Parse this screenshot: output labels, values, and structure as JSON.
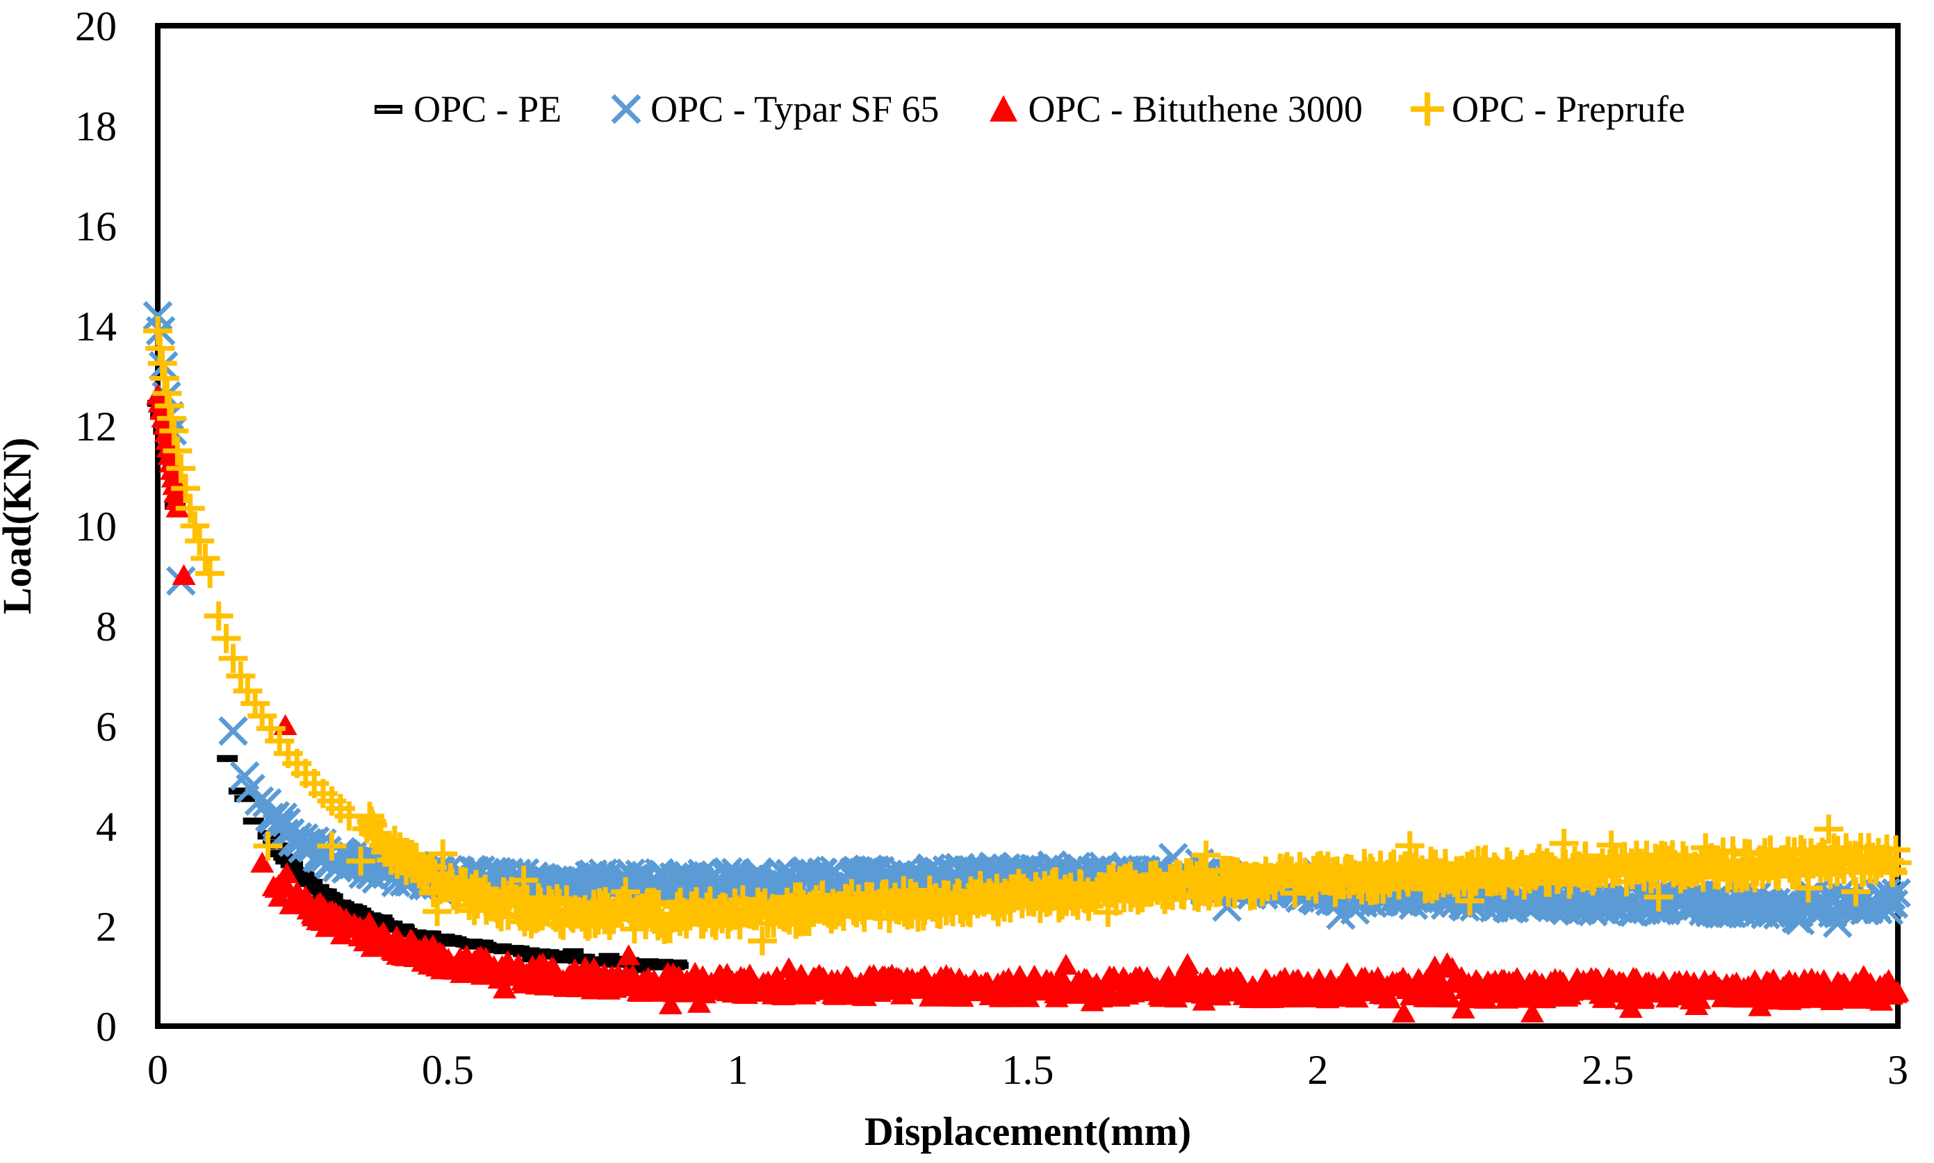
{
  "chart_data": {
    "type": "scatter",
    "title": "",
    "xlabel": "Displacement(mm)",
    "ylabel": "Load(KN)",
    "xlim": [
      0,
      3
    ],
    "ylim": [
      0,
      20
    ],
    "x_ticks": [
      0,
      0.5,
      1,
      1.5,
      2,
      2.5,
      3
    ],
    "x_tick_labels": [
      "0",
      "0.5",
      "1",
      "1.5",
      "2",
      "2.5",
      "3"
    ],
    "y_ticks": [
      0,
      2,
      4,
      6,
      8,
      10,
      12,
      14,
      16,
      18,
      20
    ],
    "y_tick_labels": [
      "0",
      "2",
      "4",
      "6",
      "8",
      "10",
      "12",
      "14",
      "16",
      "18",
      "20"
    ],
    "grid": false,
    "legend_position": "top-center",
    "plot_border": true,
    "background_color": "#ffffff",
    "series": [
      {
        "name": "OPC - PE",
        "marker": "dash",
        "color": "#000000",
        "sparse_points": [
          [
            0,
            12.45
          ],
          [
            0.005,
            12.2
          ],
          [
            0.01,
            11.9
          ],
          [
            0.015,
            11.6
          ],
          [
            0.02,
            11.3
          ],
          [
            0.03,
            10.4
          ],
          [
            0.12,
            5.35
          ],
          [
            0.14,
            4.7
          ],
          [
            0.15,
            4.55
          ],
          [
            0.165,
            4.1
          ],
          [
            0.19,
            3.8
          ]
        ],
        "band_points": [
          [
            0.19,
            3.8
          ],
          [
            0.21,
            3.5
          ],
          [
            0.24,
            3.1
          ],
          [
            0.27,
            2.8
          ],
          [
            0.3,
            2.55
          ],
          [
            0.33,
            2.35
          ],
          [
            0.36,
            2.2
          ],
          [
            0.4,
            2.0
          ],
          [
            0.44,
            1.88
          ],
          [
            0.48,
            1.77
          ],
          [
            0.52,
            1.68
          ],
          [
            0.56,
            1.6
          ],
          [
            0.6,
            1.52
          ],
          [
            0.65,
            1.45
          ],
          [
            0.7,
            1.38
          ],
          [
            0.75,
            1.32
          ],
          [
            0.8,
            1.27
          ],
          [
            0.85,
            1.23
          ],
          [
            0.9,
            1.2
          ]
        ],
        "band_halfwidth": 0.06,
        "band_step": 0.004
      },
      {
        "name": "OPC - Typar SF 65",
        "marker": "x",
        "color": "#5B9BD5",
        "sparse_points": [
          [
            0,
            14.2
          ],
          [
            0.005,
            13.9
          ],
          [
            0.01,
            13.2
          ],
          [
            0.015,
            12.6
          ],
          [
            0.02,
            12.2
          ],
          [
            0.025,
            11.9
          ],
          [
            0.04,
            8.9
          ],
          [
            0.13,
            5.9
          ],
          [
            0.15,
            5.0
          ],
          [
            0.16,
            4.75
          ],
          [
            0.175,
            4.5
          ]
        ],
        "band_points": [
          [
            0.19,
            4.3
          ],
          [
            0.2,
            4.15
          ],
          [
            0.22,
            3.95
          ],
          [
            0.24,
            3.8
          ],
          [
            0.26,
            3.65
          ],
          [
            0.28,
            3.5
          ],
          [
            0.3,
            3.4
          ],
          [
            0.33,
            3.28
          ],
          [
            0.36,
            3.18
          ],
          [
            0.4,
            3.08
          ],
          [
            0.45,
            3.0
          ],
          [
            0.5,
            2.95
          ],
          [
            0.6,
            2.9
          ],
          [
            0.7,
            2.87
          ],
          [
            0.8,
            2.86
          ],
          [
            0.9,
            2.87
          ],
          [
            1.0,
            2.9
          ],
          [
            1.2,
            2.94
          ],
          [
            1.4,
            3.0
          ],
          [
            1.55,
            3.03
          ],
          [
            1.65,
            3.0
          ],
          [
            1.8,
            2.88
          ],
          [
            2.0,
            2.7
          ],
          [
            2.2,
            2.58
          ],
          [
            2.4,
            2.5
          ],
          [
            2.6,
            2.45
          ],
          [
            2.8,
            2.42
          ],
          [
            2.9,
            2.44
          ],
          [
            3.0,
            2.5
          ]
        ],
        "band_halfwidth": 0.2,
        "band_step": 0.0035
      },
      {
        "name": "OPC - Bituthene 3000",
        "marker": "triangle",
        "color": "#FF0000",
        "sparse_points": [
          [
            0,
            12.6
          ],
          [
            0.003,
            12.45
          ],
          [
            0.006,
            12.3
          ],
          [
            0.009,
            12.15
          ],
          [
            0.012,
            12.0
          ],
          [
            0.014,
            11.85
          ],
          [
            0.016,
            11.7
          ],
          [
            0.018,
            11.55
          ],
          [
            0.02,
            11.4
          ],
          [
            0.022,
            11.25
          ],
          [
            0.024,
            11.1
          ],
          [
            0.026,
            10.95
          ],
          [
            0.028,
            10.8
          ],
          [
            0.03,
            10.65
          ],
          [
            0.032,
            10.5
          ],
          [
            0.034,
            10.35
          ],
          [
            0.045,
            9.0
          ],
          [
            0.18,
            3.25
          ],
          [
            0.22,
            6.0
          ]
        ],
        "band_points": [
          [
            0.2,
            2.8
          ],
          [
            0.22,
            2.65
          ],
          [
            0.25,
            2.45
          ],
          [
            0.28,
            2.25
          ],
          [
            0.31,
            2.05
          ],
          [
            0.34,
            1.9
          ],
          [
            0.37,
            1.75
          ],
          [
            0.4,
            1.62
          ],
          [
            0.45,
            1.45
          ],
          [
            0.5,
            1.3
          ],
          [
            0.55,
            1.2
          ],
          [
            0.6,
            1.1
          ],
          [
            0.65,
            1.02
          ],
          [
            0.7,
            0.97
          ],
          [
            0.8,
            0.9
          ],
          [
            0.9,
            0.85
          ],
          [
            1.0,
            0.82
          ],
          [
            1.2,
            0.8
          ],
          [
            1.4,
            0.78
          ],
          [
            1.6,
            0.77
          ],
          [
            1.8,
            0.76
          ],
          [
            2.0,
            0.75
          ],
          [
            2.2,
            0.75
          ],
          [
            2.4,
            0.74
          ],
          [
            2.6,
            0.73
          ],
          [
            2.8,
            0.72
          ],
          [
            3.0,
            0.7
          ]
        ],
        "band_halfwidth": 0.22,
        "band_step": 0.0035
      },
      {
        "name": "OPC - Preprufe",
        "marker": "plus",
        "color": "#FFC000",
        "sparse_points": [
          [
            0,
            13.9
          ],
          [
            0.004,
            13.55
          ],
          [
            0.008,
            13.25
          ],
          [
            0.012,
            12.95
          ],
          [
            0.016,
            12.65
          ],
          [
            0.02,
            12.4
          ],
          [
            0.024,
            12.15
          ],
          [
            0.028,
            11.9
          ],
          [
            0.034,
            11.5
          ],
          [
            0.04,
            11.15
          ],
          [
            0.048,
            10.75
          ],
          [
            0.056,
            10.35
          ],
          [
            0.064,
            10.0
          ],
          [
            0.072,
            9.7
          ],
          [
            0.082,
            9.35
          ],
          [
            0.09,
            9.05
          ],
          [
            0.105,
            8.2
          ],
          [
            0.118,
            7.75
          ],
          [
            0.13,
            7.35
          ],
          [
            0.143,
            7.0
          ],
          [
            0.155,
            6.7
          ],
          [
            0.168,
            6.45
          ],
          [
            0.18,
            6.2
          ],
          [
            0.195,
            5.95
          ],
          [
            0.21,
            5.7
          ],
          [
            0.225,
            5.45
          ],
          [
            0.24,
            5.25
          ],
          [
            0.255,
            5.05
          ],
          [
            0.27,
            4.85
          ],
          [
            0.285,
            4.65
          ],
          [
            0.3,
            4.5
          ],
          [
            0.315,
            4.35
          ],
          [
            0.33,
            4.2
          ],
          [
            0.19,
            3.6
          ],
          [
            0.3,
            3.6
          ],
          [
            0.35,
            3.3
          ]
        ],
        "band_points": [
          [
            0.36,
            4.0
          ],
          [
            0.4,
            3.6
          ],
          [
            0.45,
            3.1
          ],
          [
            0.5,
            2.75
          ],
          [
            0.55,
            2.55
          ],
          [
            0.6,
            2.4
          ],
          [
            0.7,
            2.28
          ],
          [
            0.8,
            2.22
          ],
          [
            0.9,
            2.2
          ],
          [
            1.0,
            2.25
          ],
          [
            1.1,
            2.3
          ],
          [
            1.2,
            2.38
          ],
          [
            1.3,
            2.45
          ],
          [
            1.4,
            2.53
          ],
          [
            1.5,
            2.6
          ],
          [
            1.6,
            2.68
          ],
          [
            1.7,
            2.75
          ],
          [
            1.8,
            2.82
          ],
          [
            1.9,
            2.88
          ],
          [
            2.0,
            2.94
          ],
          [
            2.2,
            3.02
          ],
          [
            2.4,
            3.1
          ],
          [
            2.6,
            3.18
          ],
          [
            2.8,
            3.26
          ],
          [
            3.0,
            3.35
          ]
        ],
        "band_halfwidth": 0.28,
        "band_step": 0.0035
      }
    ]
  }
}
